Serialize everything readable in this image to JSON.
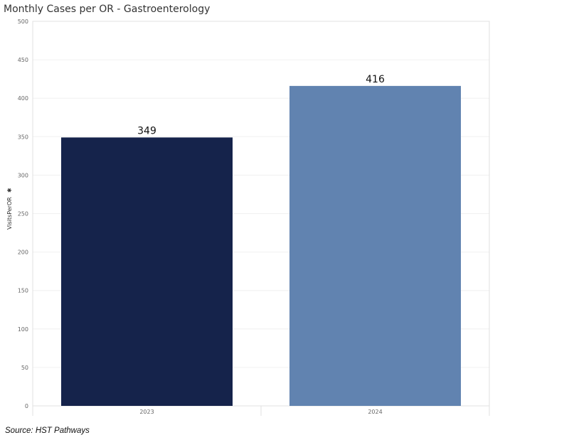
{
  "header": {
    "title": "Monthly Cases per OR - Gastroenterology"
  },
  "footer": {
    "source": "Source: HST Pathways"
  },
  "chart_data": {
    "type": "bar",
    "title": "Monthly Cases per OR - Gastroenterology",
    "categories": [
      "2023",
      "2024"
    ],
    "values": [
      349,
      416
    ],
    "colors": [
      "#15234b",
      "#6183b0"
    ],
    "xlabel": "",
    "ylabel": "VisitsPerOR",
    "ylim": [
      0,
      500
    ],
    "yticks": [
      0,
      50,
      100,
      150,
      200,
      250,
      300,
      350,
      400,
      450,
      500
    ],
    "data_labels": [
      "349",
      "416"
    ],
    "grid": true,
    "legend": "none"
  }
}
